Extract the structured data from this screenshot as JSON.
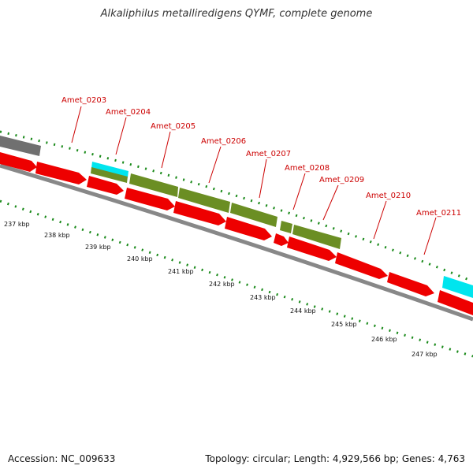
{
  "title": "Alkaliphilus metalliredigens QYMF, complete genome",
  "footer": {
    "accession": "Accession: NC_009633",
    "topology": "Topology: circular; Length: 4,929,566 bp; Genes: 4,763"
  },
  "colors": {
    "cds": "#ee0000",
    "rna": "#00e5ee",
    "grey": "#707070",
    "olive": "#6b8e23",
    "tick": "#1a8a1a",
    "label": "#cc0000"
  },
  "gene_labels": [
    "Amet_0203",
    "Amet_0204",
    "Amet_0205",
    "Amet_0206",
    "Amet_0207",
    "Amet_0208",
    "Amet_0209",
    "Amet_0210",
    "Amet_0211"
  ],
  "kbp_labels": [
    "237 kbp",
    "238 kbp",
    "239 kbp",
    "240 kbp",
    "241 kbp",
    "242 kbp",
    "243 kbp",
    "244 kbp",
    "245 kbp",
    "246 kbp",
    "247 kbp"
  ]
}
